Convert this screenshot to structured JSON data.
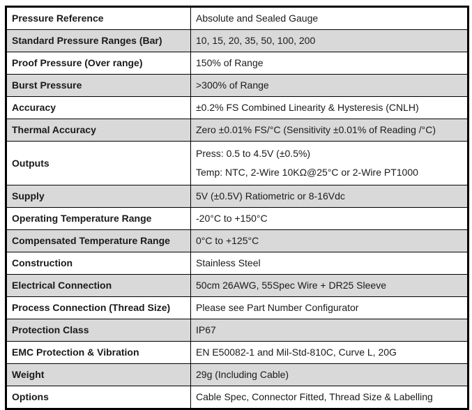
{
  "table": {
    "name": "pressure-sensor-specifications",
    "colors": {
      "shaded_row": "#d9d9d9",
      "border": "#000000",
      "text": "#1a1a1a",
      "background": "#ffffff"
    },
    "rows": [
      {
        "label": "Pressure Reference",
        "value": "Absolute and Sealed Gauge"
      },
      {
        "label": "Standard Pressure Ranges (Bar)",
        "value": "10, 15, 20, 35, 50, 100, 200"
      },
      {
        "label": "Proof Pressure (Over range)",
        "value": "150% of Range"
      },
      {
        "label": "Burst Pressure",
        "value": ">300% of Range"
      },
      {
        "label": "Accuracy",
        "value": "±0.2% FS Combined Linearity & Hysteresis (CNLH)"
      },
      {
        "label": "Thermal Accuracy",
        "value": "Zero ±0.01% FS/°C (Sensitivity ±0.01% of Reading /°C)"
      },
      {
        "label": "Outputs",
        "value": "Press: 0.5 to 4.5V (±0.5%)\nTemp: NTC, 2-Wire 10KΩ@25°C or 2-Wire PT1000"
      },
      {
        "label": "Supply",
        "value": "5V (±0.5V) Ratiometric or 8-16Vdc"
      },
      {
        "label": "Operating Temperature Range",
        "value": "-20°C to +150°C"
      },
      {
        "label": "Compensated Temperature Range",
        "value": "0°C to +125°C"
      },
      {
        "label": "Construction",
        "value": "Stainless Steel"
      },
      {
        "label": "Electrical Connection",
        "value": "50cm 26AWG, 55Spec Wire + DR25 Sleeve"
      },
      {
        "label": "Process Connection (Thread Size)",
        "value": "Please see Part Number Configurator"
      },
      {
        "label": "Protection Class",
        "value": "IP67"
      },
      {
        "label": "EMC Protection & Vibration",
        "value": "EN E50082-1 and Mil-Std-810C, Curve L, 20G"
      },
      {
        "label": "Weight",
        "value": "29g (Including Cable)"
      },
      {
        "label": "Options",
        "value": "Cable Spec, Connector Fitted, Thread Size & Labelling"
      }
    ]
  }
}
